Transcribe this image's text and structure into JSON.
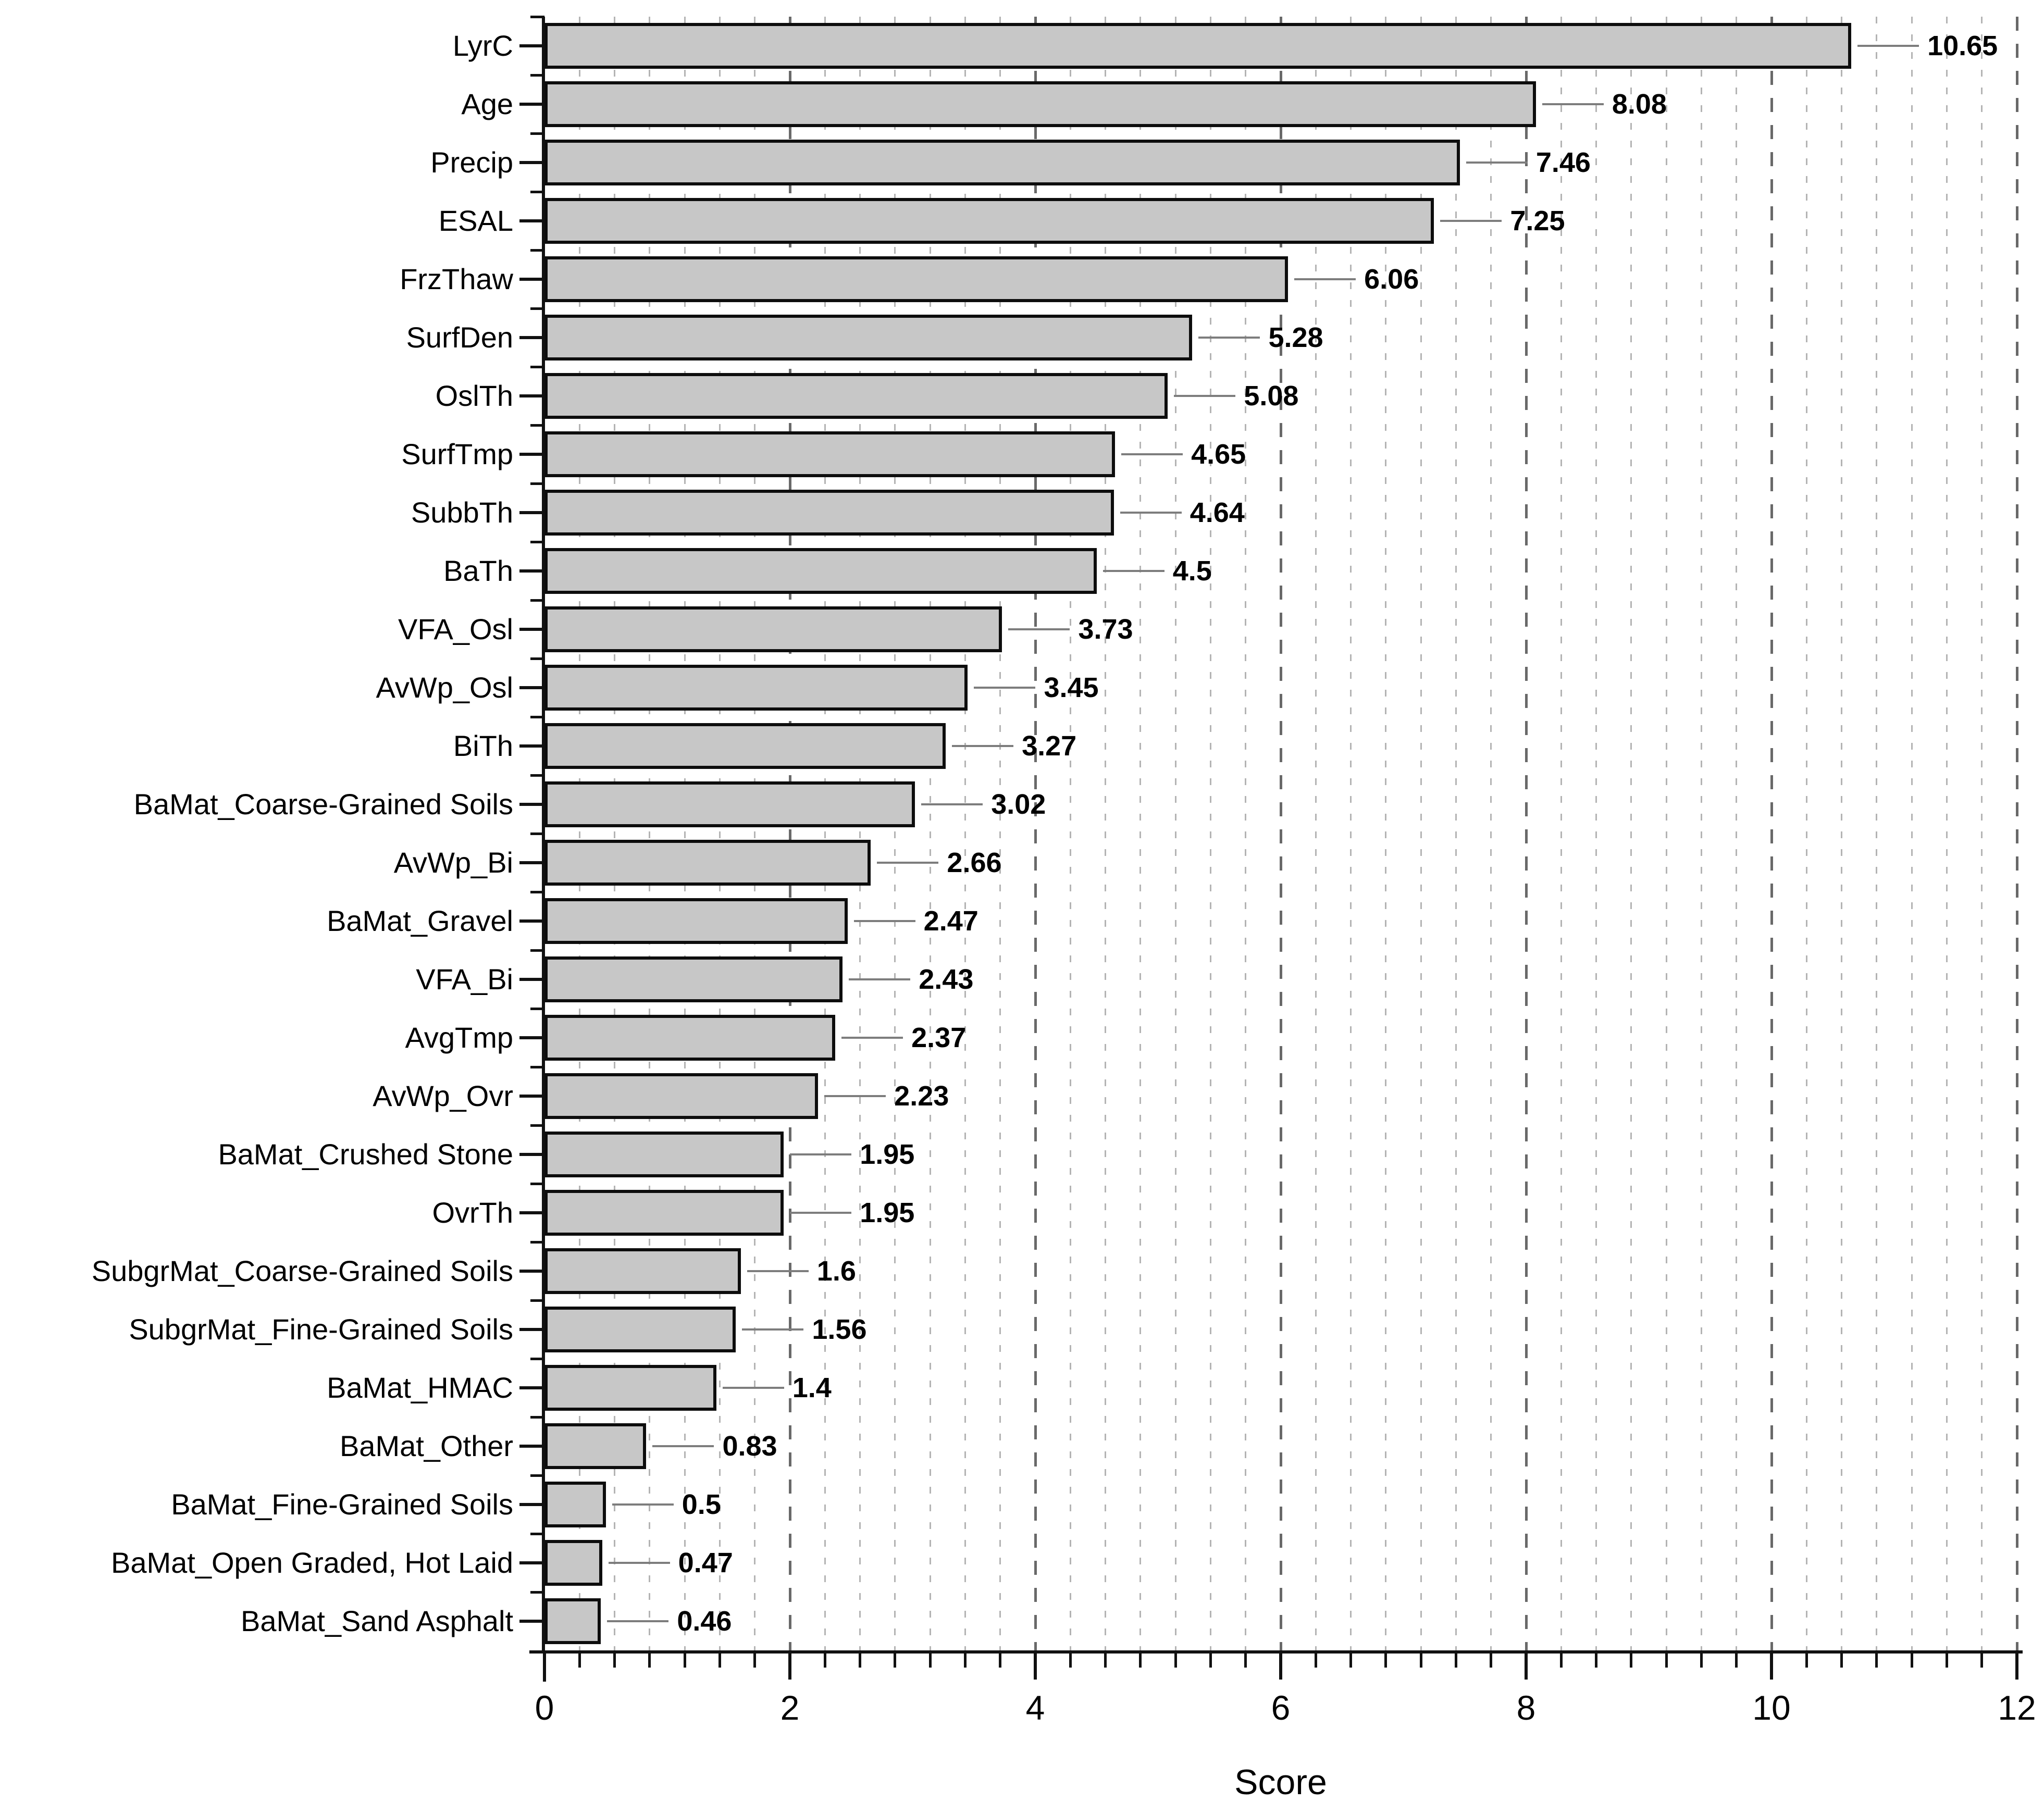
{
  "chart_data": {
    "type": "bar",
    "orientation": "horizontal",
    "title": "",
    "xlabel": "Score",
    "ylabel": "",
    "xlim": [
      0,
      12
    ],
    "x_major_ticks": [
      "0",
      "2",
      "4",
      "6",
      "8",
      "10",
      "12"
    ],
    "x_major_tick_values": [
      0,
      2,
      4,
      6,
      8,
      10,
      12
    ],
    "minor_divisions_per_major": 7,
    "grid": "vertical dashed; light minor lines every 2/7 unit, dark major lines every 2 units",
    "legend_position": "none",
    "categories": [
      "LyrC",
      "Age",
      "Precip",
      "ESAL",
      "FrzThaw",
      "SurfDen",
      "OslTh",
      "SurfTmp",
      "SubbTh",
      "BaTh",
      "VFA_Osl",
      "AvWp_Osl",
      "BiTh",
      "BaMat_Coarse-Grained Soils",
      "AvWp_Bi",
      "BaMat_Gravel",
      "VFA_Bi",
      "AvgTmp",
      "AvWp_Ovr",
      "BaMat_Crushed Stone",
      "OvrTh",
      "SubgrMat_Coarse-Grained Soils",
      "SubgrMat_Fine-Grained Soils",
      "BaMat_HMAC",
      "BaMat_Other",
      "BaMat_Fine-Grained Soils",
      "BaMat_Open Graded, Hot Laid",
      "BaMat_Sand Asphalt"
    ],
    "values": [
      10.65,
      8.08,
      7.46,
      7.25,
      6.06,
      5.28,
      5.08,
      4.65,
      4.64,
      4.5,
      3.73,
      3.45,
      3.27,
      3.02,
      2.66,
      2.47,
      2.43,
      2.37,
      2.23,
      1.95,
      1.95,
      1.6,
      1.56,
      1.4,
      0.83,
      0.5,
      0.47,
      0.46
    ],
    "value_labels": [
      "10.65",
      "8.08",
      "7.46",
      "7.25",
      "6.06",
      "5.28",
      "5.08",
      "4.65",
      "4.64",
      "4.5",
      "3.73",
      "3.45",
      "3.27",
      "3.02",
      "2.66",
      "2.47",
      "2.43",
      "2.37",
      "2.23",
      "1.95",
      "1.95",
      "1.6",
      "1.56",
      "1.4",
      "0.83",
      "0.5",
      "0.47",
      "0.46"
    ],
    "colors": {
      "bar_fill": "#c7c7c7",
      "bar_border": "#0d0d0d",
      "axis": "#111111",
      "leader_line": "#7d7d7d",
      "minor_gridline": "#b4b4b4",
      "major_gridline": "#696969",
      "text": "#000000",
      "background": "#ffffff"
    }
  }
}
